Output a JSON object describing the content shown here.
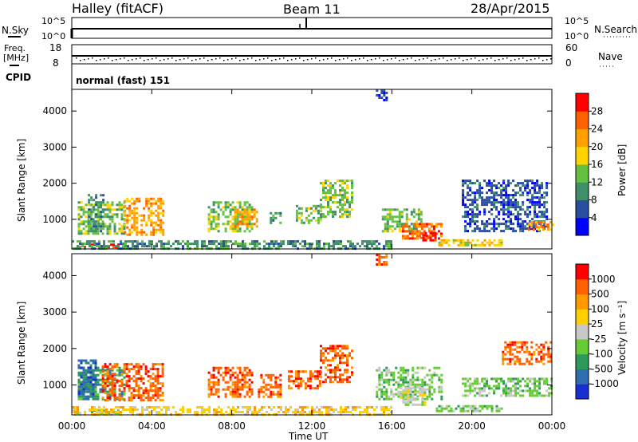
{
  "header": {
    "radar": "Halley (fitACF)",
    "beam": "Beam 11",
    "date": "28/Apr/2015"
  },
  "top_panels": {
    "nsky": {
      "label": "N.Sky",
      "tick_high": "10^5",
      "tick_low": "10^0"
    },
    "nsearch": {
      "label": "N.Search",
      "tick_high": "10^5",
      "tick_low": "10^0"
    },
    "freq": {
      "label_line1": "Freq.",
      "label_line2": "[MHz]",
      "tick_high": "18",
      "tick_low": "8"
    },
    "nave": {
      "label": "Nave",
      "tick_high": "60",
      "tick_low": "0"
    },
    "cpid": {
      "label": "CPID",
      "value": "normal (fast) 151"
    }
  },
  "colors": {
    "power_scale": [
      "#0000ff",
      "#2a4fa0",
      "#3f8f6a",
      "#66c040",
      "#ffd400",
      "#ffa000",
      "#ff6000",
      "#ff0000"
    ],
    "velocity_scale": [
      "#ff0000",
      "#ff6000",
      "#ff9a00",
      "#ffd000",
      "#c8c8c8",
      "#66cc33",
      "#2e9a5a",
      "#2f6fb0",
      "#1a2fd0"
    ]
  },
  "chart_data": [
    {
      "type": "heatmap",
      "title": "Power",
      "xlabel": "Time UT",
      "ylabel": "Slant Range [km]",
      "colorbar_label": "Power [dB]",
      "colorbar_ticks": [
        "4",
        "8",
        "12",
        "16",
        "20",
        "24",
        "28"
      ],
      "x_ticks": [
        "00:00",
        "04:00",
        "08:00",
        "12:00",
        "16:00",
        "20:00",
        "00:00"
      ],
      "y_ticks": [
        "1000",
        "2000",
        "3000",
        "4000"
      ],
      "xlim": [
        0,
        24
      ],
      "ylim": [
        180,
        4600
      ],
      "patches": [
        {
          "t0": 0.3,
          "t1": 2.6,
          "r0": 600,
          "r1": 1500,
          "c": 3
        },
        {
          "t0": 2.6,
          "t1": 4.6,
          "r0": 600,
          "r1": 1600,
          "c": 5
        },
        {
          "t0": 0.8,
          "t1": 1.6,
          "r0": 700,
          "r1": 1700,
          "c": 2
        },
        {
          "t0": 0.0,
          "t1": 2.3,
          "r0": 220,
          "r1": 330,
          "c": 7
        },
        {
          "t0": 6.8,
          "t1": 9.0,
          "r0": 700,
          "r1": 1500,
          "c": 3
        },
        {
          "t0": 8.0,
          "t1": 9.2,
          "r0": 800,
          "r1": 1300,
          "c": 5
        },
        {
          "t0": 9.9,
          "t1": 10.4,
          "r0": 900,
          "r1": 1200,
          "c": 2
        },
        {
          "t0": 11.2,
          "t1": 12.4,
          "r0": 900,
          "r1": 1400,
          "c": 3
        },
        {
          "t0": 12.4,
          "t1": 14.0,
          "r0": 1100,
          "r1": 2100,
          "c": 3
        },
        {
          "t0": 15.5,
          "t1": 17.5,
          "r0": 700,
          "r1": 1300,
          "c": 3
        },
        {
          "t0": 16.5,
          "t1": 18.5,
          "r0": 450,
          "r1": 900,
          "c": 6
        },
        {
          "t0": 17.4,
          "t1": 18.2,
          "r0": 450,
          "r1": 650,
          "c": 7
        },
        {
          "t0": 18.2,
          "t1": 21.5,
          "r0": 260,
          "r1": 450,
          "c": 4
        },
        {
          "t0": 15.2,
          "t1": 15.7,
          "r0": 4300,
          "r1": 4600,
          "c": 1
        },
        {
          "t0": 19.5,
          "t1": 23.8,
          "r0": 700,
          "r1": 2100,
          "c": 1
        },
        {
          "t0": 22.8,
          "t1": 24.0,
          "r0": 700,
          "r1": 950,
          "c": 5
        },
        {
          "t0": 0.0,
          "t1": 16.0,
          "r0": 200,
          "r1": 420,
          "c": 2
        }
      ]
    },
    {
      "type": "heatmap",
      "title": "Velocity",
      "xlabel": "Time UT",
      "ylabel": "Slant Range [km]",
      "colorbar_label": "Velocity [m s⁻¹]",
      "colorbar_ticks": [
        "1000",
        "500",
        "100",
        "25",
        "-25",
        "-100",
        "-500",
        "-1000"
      ],
      "x_ticks": [
        "00:00",
        "04:00",
        "08:00",
        "12:00",
        "16:00",
        "20:00",
        "00:00"
      ],
      "y_ticks": [
        "1000",
        "2000",
        "3000",
        "4000"
      ],
      "xlim": [
        0,
        24
      ],
      "ylim": [
        180,
        4600
      ],
      "patches": [
        {
          "t0": 0.3,
          "t1": 2.6,
          "r0": 600,
          "r1": 1500,
          "c": 6
        },
        {
          "t0": 1.5,
          "t1": 4.6,
          "r0": 600,
          "r1": 1600,
          "c": 1
        },
        {
          "t0": 0.3,
          "t1": 1.2,
          "r0": 600,
          "r1": 1700,
          "c": 7
        },
        {
          "t0": 0.0,
          "t1": 2.3,
          "r0": 220,
          "r1": 330,
          "c": 5
        },
        {
          "t0": 6.8,
          "t1": 9.0,
          "r0": 700,
          "r1": 1500,
          "c": 1
        },
        {
          "t0": 9.3,
          "t1": 10.4,
          "r0": 700,
          "r1": 1300,
          "c": 1
        },
        {
          "t0": 10.8,
          "t1": 12.4,
          "r0": 900,
          "r1": 1400,
          "c": 1
        },
        {
          "t0": 12.4,
          "t1": 14.0,
          "r0": 1100,
          "r1": 2100,
          "c": 1
        },
        {
          "t0": 15.2,
          "t1": 18.5,
          "r0": 600,
          "r1": 1500,
          "c": 5
        },
        {
          "t0": 16.4,
          "t1": 17.6,
          "r0": 450,
          "r1": 950,
          "c": 4
        },
        {
          "t0": 18.2,
          "t1": 21.5,
          "r0": 260,
          "r1": 450,
          "c": 5
        },
        {
          "t0": 15.2,
          "t1": 15.7,
          "r0": 4300,
          "r1": 4600,
          "c": 1
        },
        {
          "t0": 21.5,
          "t1": 24.0,
          "r0": 1600,
          "r1": 2200,
          "c": 1
        },
        {
          "t0": 19.5,
          "t1": 24.0,
          "r0": 700,
          "r1": 1200,
          "c": 5
        },
        {
          "t0": 0.0,
          "t1": 16.0,
          "r0": 200,
          "r1": 420,
          "c": 3
        }
      ]
    }
  ]
}
